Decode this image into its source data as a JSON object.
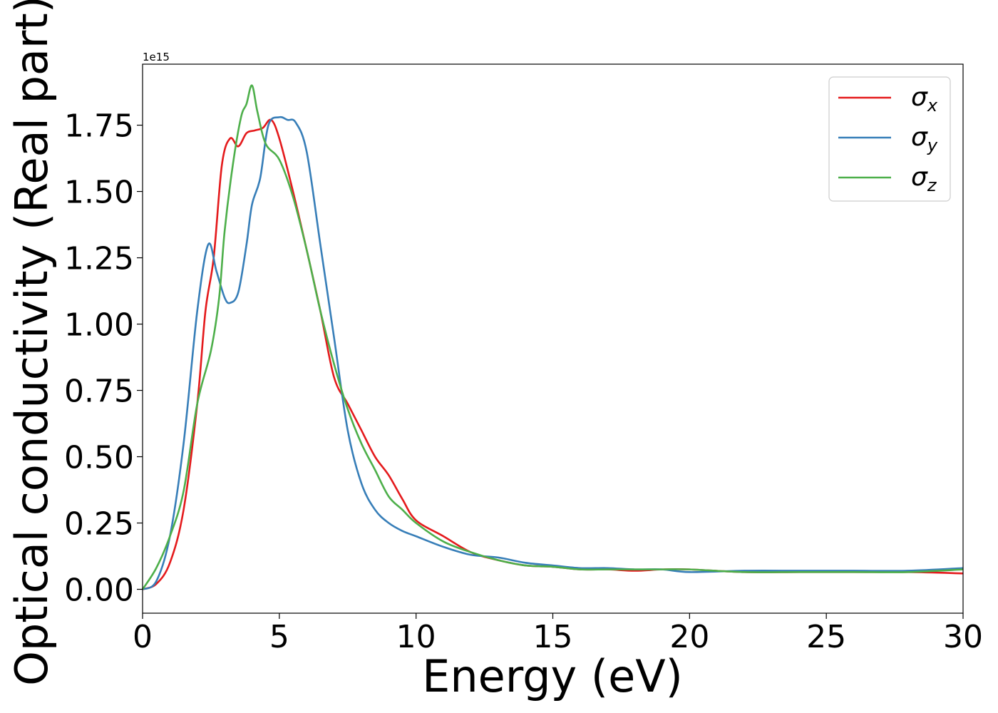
{
  "chart_data": {
    "type": "line",
    "title": "",
    "xlabel": "Energy (eV)",
    "ylabel": "Optical conductivity (Real part)",
    "y_offset_label": "1e15",
    "xlim": [
      0,
      30
    ],
    "ylim": [
      -0.09,
      1.98
    ],
    "x_ticks": [
      0,
      5,
      10,
      15,
      20,
      25,
      30
    ],
    "x_tick_labels": [
      "0",
      "5",
      "10",
      "15",
      "20",
      "25",
      "30"
    ],
    "y_ticks": [
      0,
      0.25,
      0.5,
      0.75,
      1.0,
      1.25,
      1.5,
      1.75
    ],
    "y_tick_labels": [
      "0.00",
      "0.25",
      "0.50",
      "0.75",
      "1.00",
      "1.25",
      "1.50",
      "1.75"
    ],
    "grid": false,
    "legend_position": "top-right",
    "series": [
      {
        "name": "σ",
        "subscript": "x",
        "color": "#e41a1c",
        "x": [
          0,
          0.5,
          1.0,
          1.5,
          2.0,
          2.3,
          2.6,
          2.9,
          3.2,
          3.5,
          3.8,
          4.1,
          4.4,
          4.7,
          5.0,
          5.5,
          6.0,
          6.5,
          7.0,
          7.5,
          8.0,
          8.5,
          9.0,
          9.5,
          10.0,
          11.0,
          12.0,
          13.0,
          14.0,
          15.0,
          16.0,
          17.0,
          18.0,
          19.0,
          20.0,
          22.0,
          24.0,
          26.0,
          28.0,
          30.0
        ],
        "y": [
          0.0,
          0.02,
          0.1,
          0.3,
          0.7,
          1.05,
          1.25,
          1.6,
          1.7,
          1.67,
          1.72,
          1.73,
          1.74,
          1.77,
          1.7,
          1.5,
          1.28,
          1.05,
          0.8,
          0.7,
          0.6,
          0.5,
          0.43,
          0.34,
          0.26,
          0.2,
          0.14,
          0.11,
          0.09,
          0.085,
          0.075,
          0.075,
          0.07,
          0.075,
          0.075,
          0.065,
          0.065,
          0.065,
          0.065,
          0.06
        ]
      },
      {
        "name": "σ",
        "subscript": "y",
        "color": "#377eb8",
        "x": [
          0,
          0.5,
          1.0,
          1.5,
          2.0,
          2.4,
          2.7,
          3.0,
          3.2,
          3.5,
          3.8,
          4.0,
          4.3,
          4.6,
          5.0,
          5.3,
          5.6,
          6.0,
          6.5,
          7.0,
          7.5,
          8.0,
          8.5,
          9.0,
          9.5,
          10.0,
          11.0,
          12.0,
          13.0,
          14.0,
          15.0,
          16.0,
          17.0,
          18.0,
          19.0,
          20.0,
          22.0,
          24.0,
          26.0,
          28.0,
          30.0
        ],
        "y": [
          0.0,
          0.03,
          0.2,
          0.55,
          1.05,
          1.3,
          1.2,
          1.1,
          1.08,
          1.12,
          1.3,
          1.45,
          1.55,
          1.75,
          1.78,
          1.77,
          1.76,
          1.65,
          1.3,
          0.95,
          0.6,
          0.4,
          0.3,
          0.25,
          0.22,
          0.2,
          0.16,
          0.13,
          0.12,
          0.1,
          0.09,
          0.08,
          0.08,
          0.075,
          0.075,
          0.065,
          0.07,
          0.07,
          0.07,
          0.07,
          0.08
        ]
      },
      {
        "name": "σ",
        "subscript": "z",
        "color": "#4daf4a",
        "x": [
          0,
          0.5,
          1.0,
          1.5,
          2.0,
          2.5,
          2.8,
          3.0,
          3.3,
          3.6,
          3.8,
          4.0,
          4.2,
          4.5,
          5.0,
          5.5,
          6.0,
          6.5,
          7.0,
          7.5,
          8.0,
          8.5,
          9.0,
          9.5,
          10.0,
          11.0,
          12.0,
          13.0,
          14.0,
          15.0,
          16.0,
          17.0,
          18.0,
          19.0,
          20.0,
          22.0,
          24.0,
          26.0,
          28.0,
          30.0
        ],
        "y": [
          0.0,
          0.08,
          0.2,
          0.37,
          0.7,
          0.9,
          1.1,
          1.35,
          1.6,
          1.78,
          1.83,
          1.9,
          1.8,
          1.68,
          1.62,
          1.48,
          1.28,
          1.05,
          0.85,
          0.68,
          0.55,
          0.45,
          0.35,
          0.3,
          0.25,
          0.18,
          0.14,
          0.11,
          0.09,
          0.085,
          0.075,
          0.075,
          0.075,
          0.075,
          0.075,
          0.065,
          0.065,
          0.065,
          0.065,
          0.075
        ]
      }
    ]
  }
}
